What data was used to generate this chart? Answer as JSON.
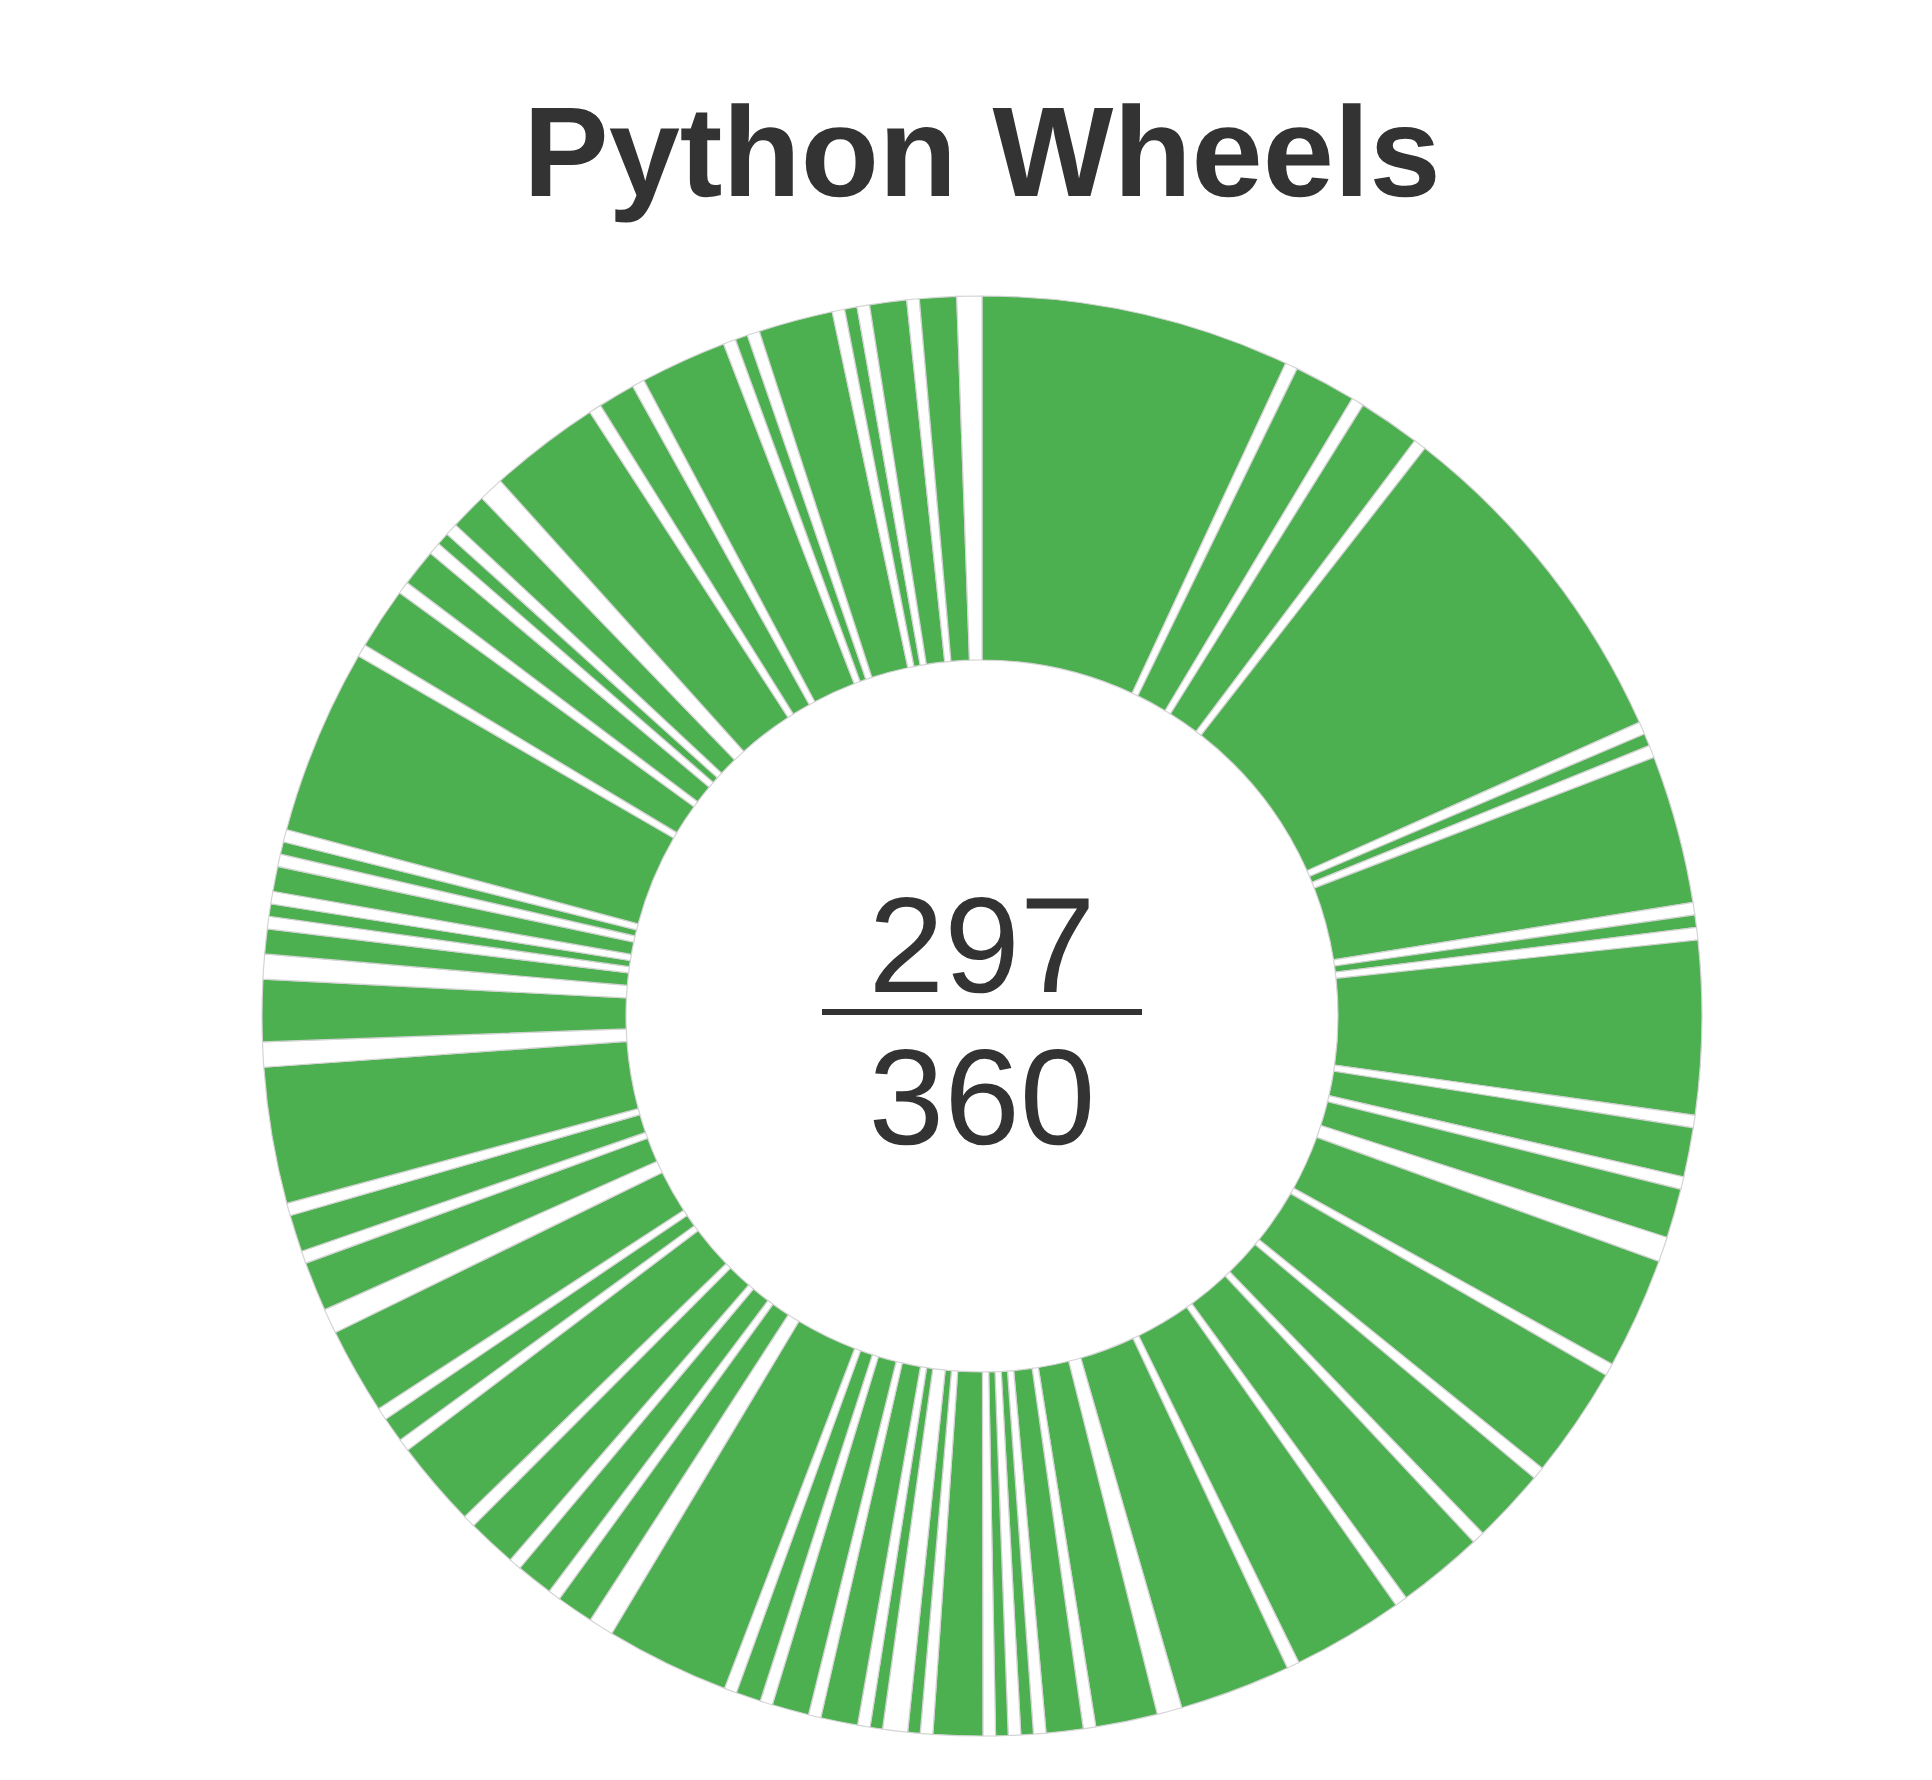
{
  "chart_data": {
    "type": "donut",
    "title": "Python Wheels",
    "categories": [
      null,
      null,
      null,
      null,
      null,
      null,
      null,
      null,
      null,
      null,
      null,
      null,
      null,
      null,
      null,
      null,
      null,
      null,
      null,
      null,
      null,
      null,
      null,
      null,
      null,
      null,
      null,
      null,
      null,
      null,
      null,
      null,
      null,
      null,
      null,
      null,
      null,
      null,
      null,
      null,
      null,
      null,
      null,
      null,
      null,
      null,
      null,
      null,
      null,
      null,
      null,
      null,
      null,
      null,
      null,
      null,
      null,
      null,
      null,
      null,
      null,
      null,
      null,
      null,
      null,
      null,
      null,
      null,
      null,
      null,
      null,
      null,
      null,
      null,
      null,
      null,
      null,
      null,
      null,
      null,
      null,
      null,
      null,
      null,
      null,
      null,
      null,
      null,
      null,
      null,
      null,
      null,
      null,
      null,
      null,
      null,
      null,
      null,
      null,
      null,
      null,
      null,
      null,
      null,
      null,
      null,
      null,
      null
    ],
    "values": [
      6.94,
      0.28,
      1.39,
      0.28,
      1.39,
      0.28,
      7.78,
      0.28,
      0.28,
      0.28,
      3.33,
      0.28,
      0.28,
      0.28,
      3.89,
      0.28,
      1.11,
      0.28,
      1.11,
      0.56,
      2.5,
      0.28,
      2.5,
      0.28,
      1.67,
      0.28,
      1.94,
      0.28,
      2.5,
      0.28,
      2.5,
      0.56,
      1.39,
      0.28,
      0.83,
      0.28,
      0.28,
      0.28,
      0.28,
      0.28,
      1.11,
      0.28,
      0.28,
      0.56,
      0.28,
      0.28,
      0.83,
      0.28,
      0.83,
      0.28,
      0.56,
      0.28,
      2.78,
      0.56,
      0.83,
      0.28,
      0.83,
      0.28,
      1.11,
      0.28,
      1.94,
      0.28,
      0.56,
      0.28,
      1.94,
      0.56,
      1.11,
      0.28,
      0.83,
      0.28,
      3.06,
      0.56,
      1.39,
      0.56,
      0.56,
      0.28,
      0.28,
      0.28,
      0.56,
      0.28,
      0.28,
      0.28,
      4.17,
      0.28,
      1.39,
      0.28,
      0.83,
      0.28,
      0.28,
      0.28,
      0.83,
      0.56,
      2.5,
      0.28,
      0.83,
      0.28,
      1.94,
      0.28,
      0.28,
      0.28,
      1.67,
      0.28,
      0.28,
      0.28,
      0.83,
      0.28,
      0.83,
      0.56
    ],
    "colors": [
      "#4caf50",
      "#ffffff",
      "#4caf50",
      "#ffffff",
      "#4caf50",
      "#ffffff",
      "#4caf50",
      "#ffffff",
      "#4caf50",
      "#ffffff",
      "#4caf50",
      "#ffffff",
      "#4caf50",
      "#ffffff",
      "#4caf50",
      "#ffffff",
      "#4caf50",
      "#ffffff",
      "#4caf50",
      "#ffffff",
      "#4caf50",
      "#ffffff",
      "#4caf50",
      "#ffffff",
      "#4caf50",
      "#ffffff",
      "#4caf50",
      "#ffffff",
      "#4caf50",
      "#ffffff",
      "#4caf50",
      "#ffffff",
      "#4caf50",
      "#ffffff",
      "#4caf50",
      "#ffffff",
      "#4caf50",
      "#ffffff",
      "#4caf50",
      "#ffffff",
      "#4caf50",
      "#ffffff",
      "#4caf50",
      "#ffffff",
      "#4caf50",
      "#ffffff",
      "#4caf50",
      "#ffffff",
      "#4caf50",
      "#ffffff",
      "#4caf50",
      "#ffffff",
      "#4caf50",
      "#ffffff",
      "#4caf50",
      "#ffffff",
      "#4caf50",
      "#ffffff",
      "#4caf50",
      "#ffffff",
      "#4caf50",
      "#ffffff",
      "#4caf50",
      "#ffffff",
      "#4caf50",
      "#ffffff",
      "#4caf50",
      "#ffffff",
      "#4caf50",
      "#ffffff",
      "#4caf50",
      "#ffffff",
      "#4caf50",
      "#ffffff",
      "#4caf50",
      "#ffffff",
      "#4caf50",
      "#ffffff",
      "#4caf50",
      "#ffffff",
      "#4caf50",
      "#ffffff",
      "#4caf50",
      "#ffffff",
      "#4caf50",
      "#ffffff",
      "#4caf50",
      "#ffffff",
      "#4caf50",
      "#ffffff",
      "#4caf50",
      "#ffffff",
      "#4caf50",
      "#ffffff",
      "#4caf50",
      "#ffffff",
      "#4caf50",
      "#ffffff",
      "#4caf50",
      "#ffffff",
      "#4caf50",
      "#ffffff",
      "#4caf50",
      "#ffffff",
      "#4caf50",
      "#ffffff",
      "#4caf50",
      "#ffffff"
    ],
    "annotations": [
      "297",
      "360"
    ]
  }
}
